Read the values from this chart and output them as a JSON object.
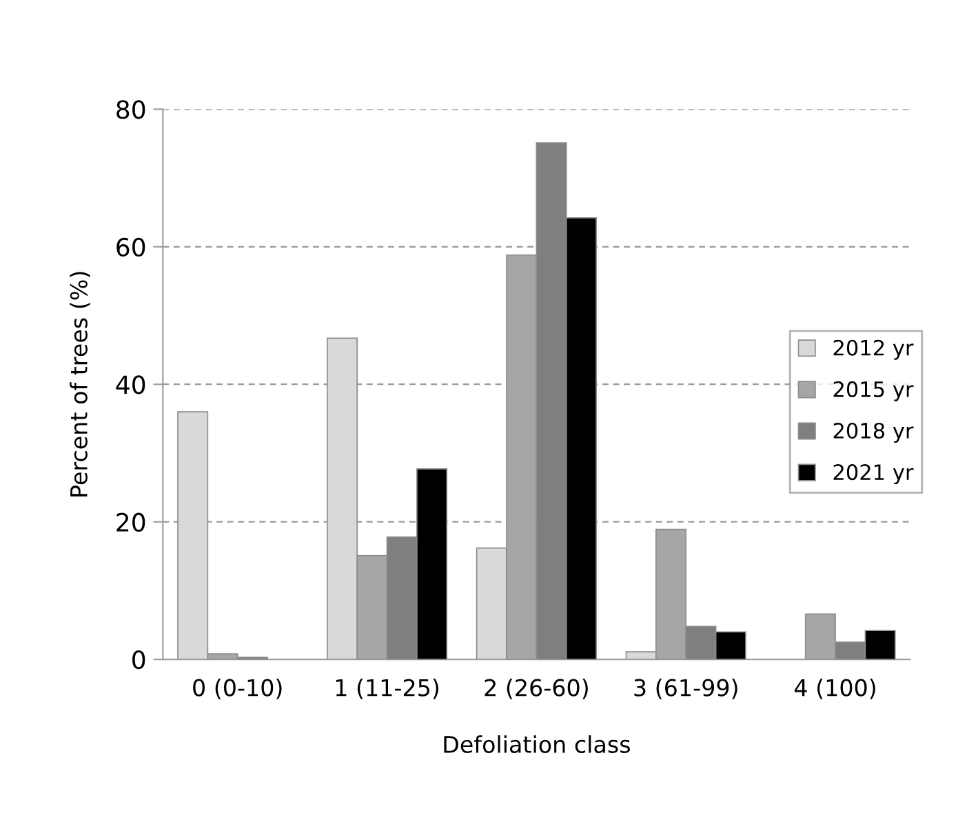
{
  "chart_data": {
    "type": "bar",
    "xlabel": "Defoliation class",
    "ylabel": "Percent of trees (%)",
    "categories": [
      "0 (0-10)",
      "1 (11-25)",
      "2 (26-60)",
      "3 (61-99)",
      "4 (100)"
    ],
    "series": [
      {
        "name": "2012 yr",
        "color": "#d9d9d9",
        "values": [
          36.0,
          46.7,
          16.2,
          1.1,
          null
        ]
      },
      {
        "name": "2015 yr",
        "color": "#a6a6a6",
        "values": [
          0.8,
          15.1,
          58.8,
          18.9,
          6.6
        ]
      },
      {
        "name": "2018 yr",
        "color": "#7f7f7f",
        "values": [
          0.3,
          17.8,
          75.1,
          4.8,
          2.5
        ]
      },
      {
        "name": "2021 yr",
        "color": "#000000",
        "values": [
          null,
          27.7,
          64.2,
          4.0,
          4.2
        ]
      }
    ],
    "ylim": [
      0,
      80
    ],
    "yticks": [
      0,
      20,
      40,
      60,
      80
    ],
    "grid": "y",
    "legend": "right"
  }
}
